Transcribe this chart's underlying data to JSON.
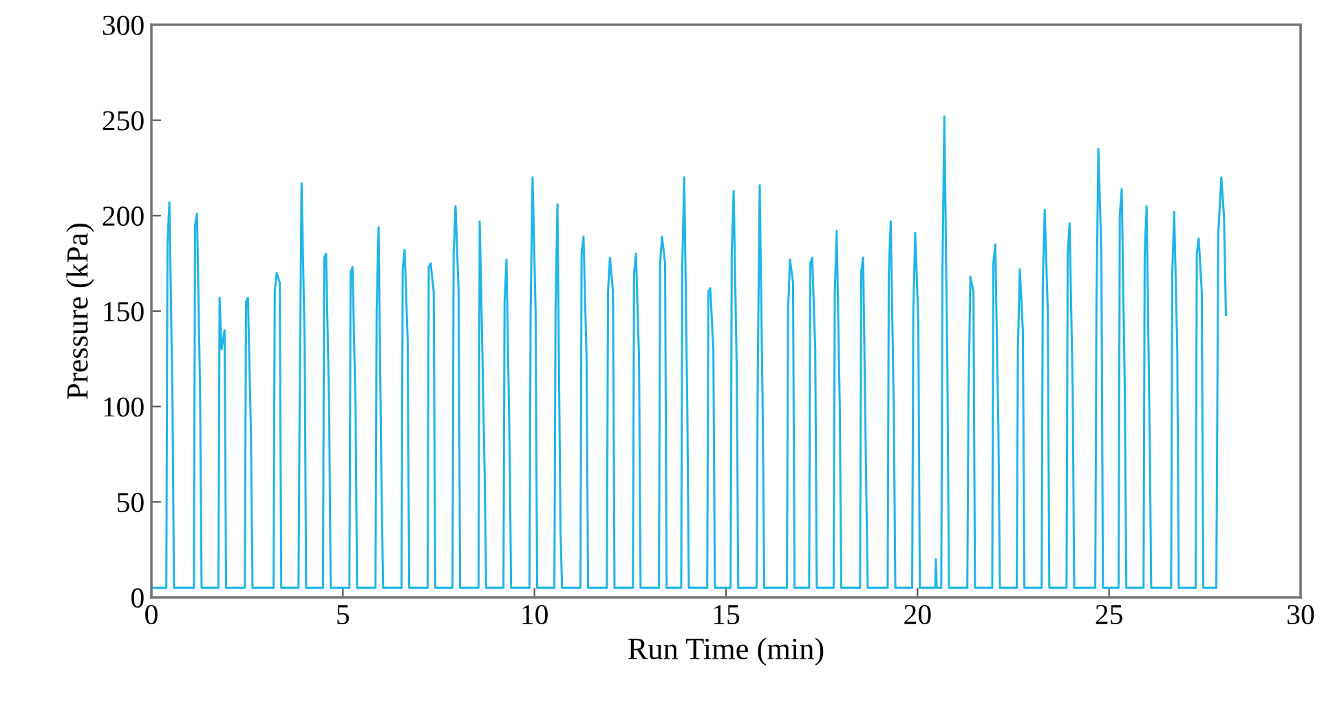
{
  "chart_data": {
    "type": "line",
    "xlabel": "Run Time (min)",
    "ylabel": "Pressure (kPa)",
    "xlim": [
      0,
      30
    ],
    "ylim": [
      0,
      300
    ],
    "xticks": [
      0,
      5,
      10,
      15,
      20,
      25,
      30
    ],
    "yticks": [
      0,
      50,
      100,
      150,
      200,
      250,
      300
    ],
    "grid": false,
    "marker": "none",
    "line_style": "solid",
    "series": [
      {
        "color": "#1fb5ea",
        "x": [
          0,
          0.39,
          0.42,
          0.47,
          0.55,
          0.59,
          1.11,
          1.14,
          1.19,
          1.27,
          1.31,
          1.75,
          1.78,
          1.83,
          1.91,
          1.95,
          2.44,
          2.47,
          2.52,
          2.6,
          2.64,
          3.19,
          3.22,
          3.27,
          3.35,
          3.39,
          3.84,
          3.87,
          3.92,
          4.0,
          4.04,
          4.48,
          4.51,
          4.56,
          4.64,
          4.68,
          5.17,
          5.2,
          5.25,
          5.33,
          5.37,
          5.85,
          5.88,
          5.93,
          6.01,
          6.05,
          6.53,
          6.56,
          6.61,
          6.69,
          6.73,
          7.21,
          7.24,
          7.29,
          7.37,
          7.41,
          7.86,
          7.89,
          7.94,
          8.02,
          8.06,
          8.54,
          8.57,
          8.62,
          8.7,
          8.74,
          9.19,
          9.22,
          9.27,
          9.35,
          9.39,
          9.87,
          9.9,
          9.95,
          10.03,
          10.07,
          10.52,
          10.55,
          10.6,
          10.68,
          10.72,
          11.2,
          11.23,
          11.28,
          11.36,
          11.4,
          11.89,
          11.92,
          11.97,
          12.05,
          12.09,
          12.57,
          12.6,
          12.65,
          12.73,
          12.77,
          13.25,
          13.28,
          13.33,
          13.41,
          13.45,
          13.83,
          13.86,
          13.91,
          13.99,
          14.03,
          14.51,
          14.54,
          14.59,
          14.67,
          14.71,
          15.12,
          15.15,
          15.2,
          15.28,
          15.32,
          15.8,
          15.83,
          15.88,
          15.96,
          16.0,
          16.59,
          16.62,
          16.67,
          16.75,
          16.79,
          17.17,
          17.2,
          17.25,
          17.33,
          17.37,
          17.81,
          17.84,
          17.89,
          17.97,
          18.01,
          18.5,
          18.53,
          18.58,
          18.66,
          18.7,
          19.22,
          19.25,
          19.3,
          19.38,
          19.42,
          19.86,
          19.89,
          19.94,
          20.02,
          20.06,
          20.46,
          20.48,
          20.5,
          20.62,
          20.65,
          20.7,
          20.78,
          20.82,
          21.3,
          21.33,
          21.38,
          21.46,
          21.5,
          21.95,
          21.98,
          22.03,
          22.11,
          22.15,
          22.59,
          22.62,
          22.67,
          22.75,
          22.79,
          23.24,
          23.27,
          23.32,
          23.4,
          23.44,
          23.89,
          23.92,
          23.97,
          24.05,
          24.09,
          24.64,
          24.67,
          24.72,
          24.8,
          24.84,
          25.25,
          25.28,
          25.33,
          25.41,
          25.45,
          25.9,
          25.93,
          25.98,
          26.06,
          26.1,
          26.62,
          26.65,
          26.7,
          26.78,
          26.82,
          27.26,
          27.29,
          27.34,
          27.42,
          27.46,
          27.8,
          27.85,
          27.93,
          28.0,
          28.05
        ],
        "values": [
          5,
          5,
          185,
          207,
          105,
          5,
          5,
          195,
          201,
          110,
          5,
          5,
          157,
          130,
          140,
          5,
          5,
          155,
          157,
          85,
          5,
          5,
          160,
          170,
          165,
          5,
          5,
          100,
          217,
          135,
          5,
          5,
          178,
          180,
          100,
          5,
          5,
          170,
          173,
          100,
          5,
          5,
          150,
          194,
          55,
          5,
          5,
          172,
          182,
          135,
          5,
          5,
          173,
          175,
          160,
          5,
          5,
          180,
          205,
          160,
          5,
          5,
          197,
          150,
          65,
          5,
          5,
          155,
          177,
          80,
          5,
          5,
          150,
          220,
          150,
          5,
          5,
          150,
          206,
          35,
          5,
          5,
          180,
          189,
          125,
          5,
          5,
          160,
          178,
          160,
          5,
          5,
          170,
          180,
          125,
          5,
          5,
          175,
          189,
          175,
          5,
          5,
          175,
          220,
          100,
          5,
          5,
          160,
          162,
          130,
          5,
          5,
          180,
          213,
          120,
          5,
          5,
          120,
          216,
          95,
          5,
          5,
          150,
          177,
          165,
          5,
          5,
          175,
          178,
          130,
          5,
          5,
          160,
          192,
          100,
          5,
          5,
          170,
          178,
          60,
          5,
          5,
          170,
          197,
          100,
          5,
          5,
          150,
          191,
          145,
          5,
          5,
          20,
          5,
          5,
          170,
          252,
          120,
          5,
          5,
          105,
          168,
          160,
          5,
          5,
          175,
          185,
          90,
          5,
          5,
          130,
          172,
          140,
          5,
          5,
          165,
          203,
          150,
          5,
          5,
          180,
          196,
          110,
          5,
          5,
          150,
          235,
          180,
          5,
          5,
          200,
          214,
          110,
          5,
          5,
          180,
          205,
          85,
          5,
          5,
          170,
          202,
          130,
          5,
          5,
          180,
          188,
          160,
          5,
          5,
          190,
          220,
          200,
          148
        ]
      }
    ]
  }
}
